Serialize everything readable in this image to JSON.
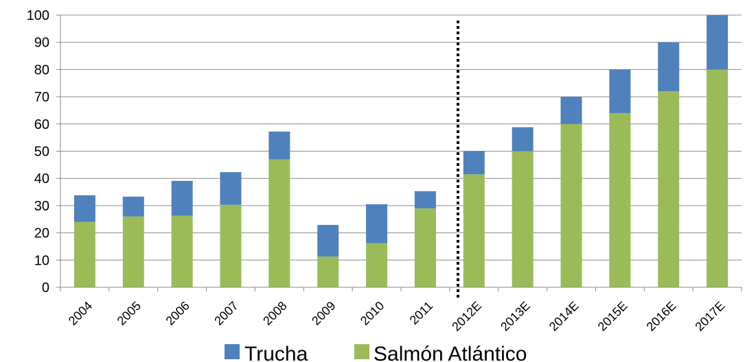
{
  "chart_data": {
    "type": "bar",
    "stacked": true,
    "categories": [
      "2004",
      "2005",
      "2006",
      "2007",
      "2008",
      "2009",
      "2010",
      "2011",
      "2012E",
      "2013E",
      "2014E",
      "2015E",
      "2016E",
      "2017E"
    ],
    "series": [
      {
        "name": "Salmón Atlántico",
        "color": "#9BBB59",
        "values": [
          24,
          26,
          26.3,
          30.3,
          47,
          11.3,
          16.2,
          29,
          41.5,
          50,
          60,
          64,
          72,
          80
        ]
      },
      {
        "name": "Trucha",
        "color": "#4F81BD",
        "values": [
          9.8,
          7.3,
          12.8,
          12,
          10.2,
          11.6,
          14.3,
          6.3,
          8.5,
          8.8,
          10,
          16,
          18,
          20
        ]
      }
    ],
    "yticks": [
      "0",
      "10",
      "20",
      "30",
      "40",
      "50",
      "60",
      "70",
      "80",
      "90",
      "100"
    ],
    "ylim": [
      0,
      100
    ],
    "grid": true,
    "forecast_divider_after": "2011",
    "legend": {
      "placement": "bottom",
      "items": [
        "Trucha",
        "Salmón Atlántico"
      ]
    }
  }
}
